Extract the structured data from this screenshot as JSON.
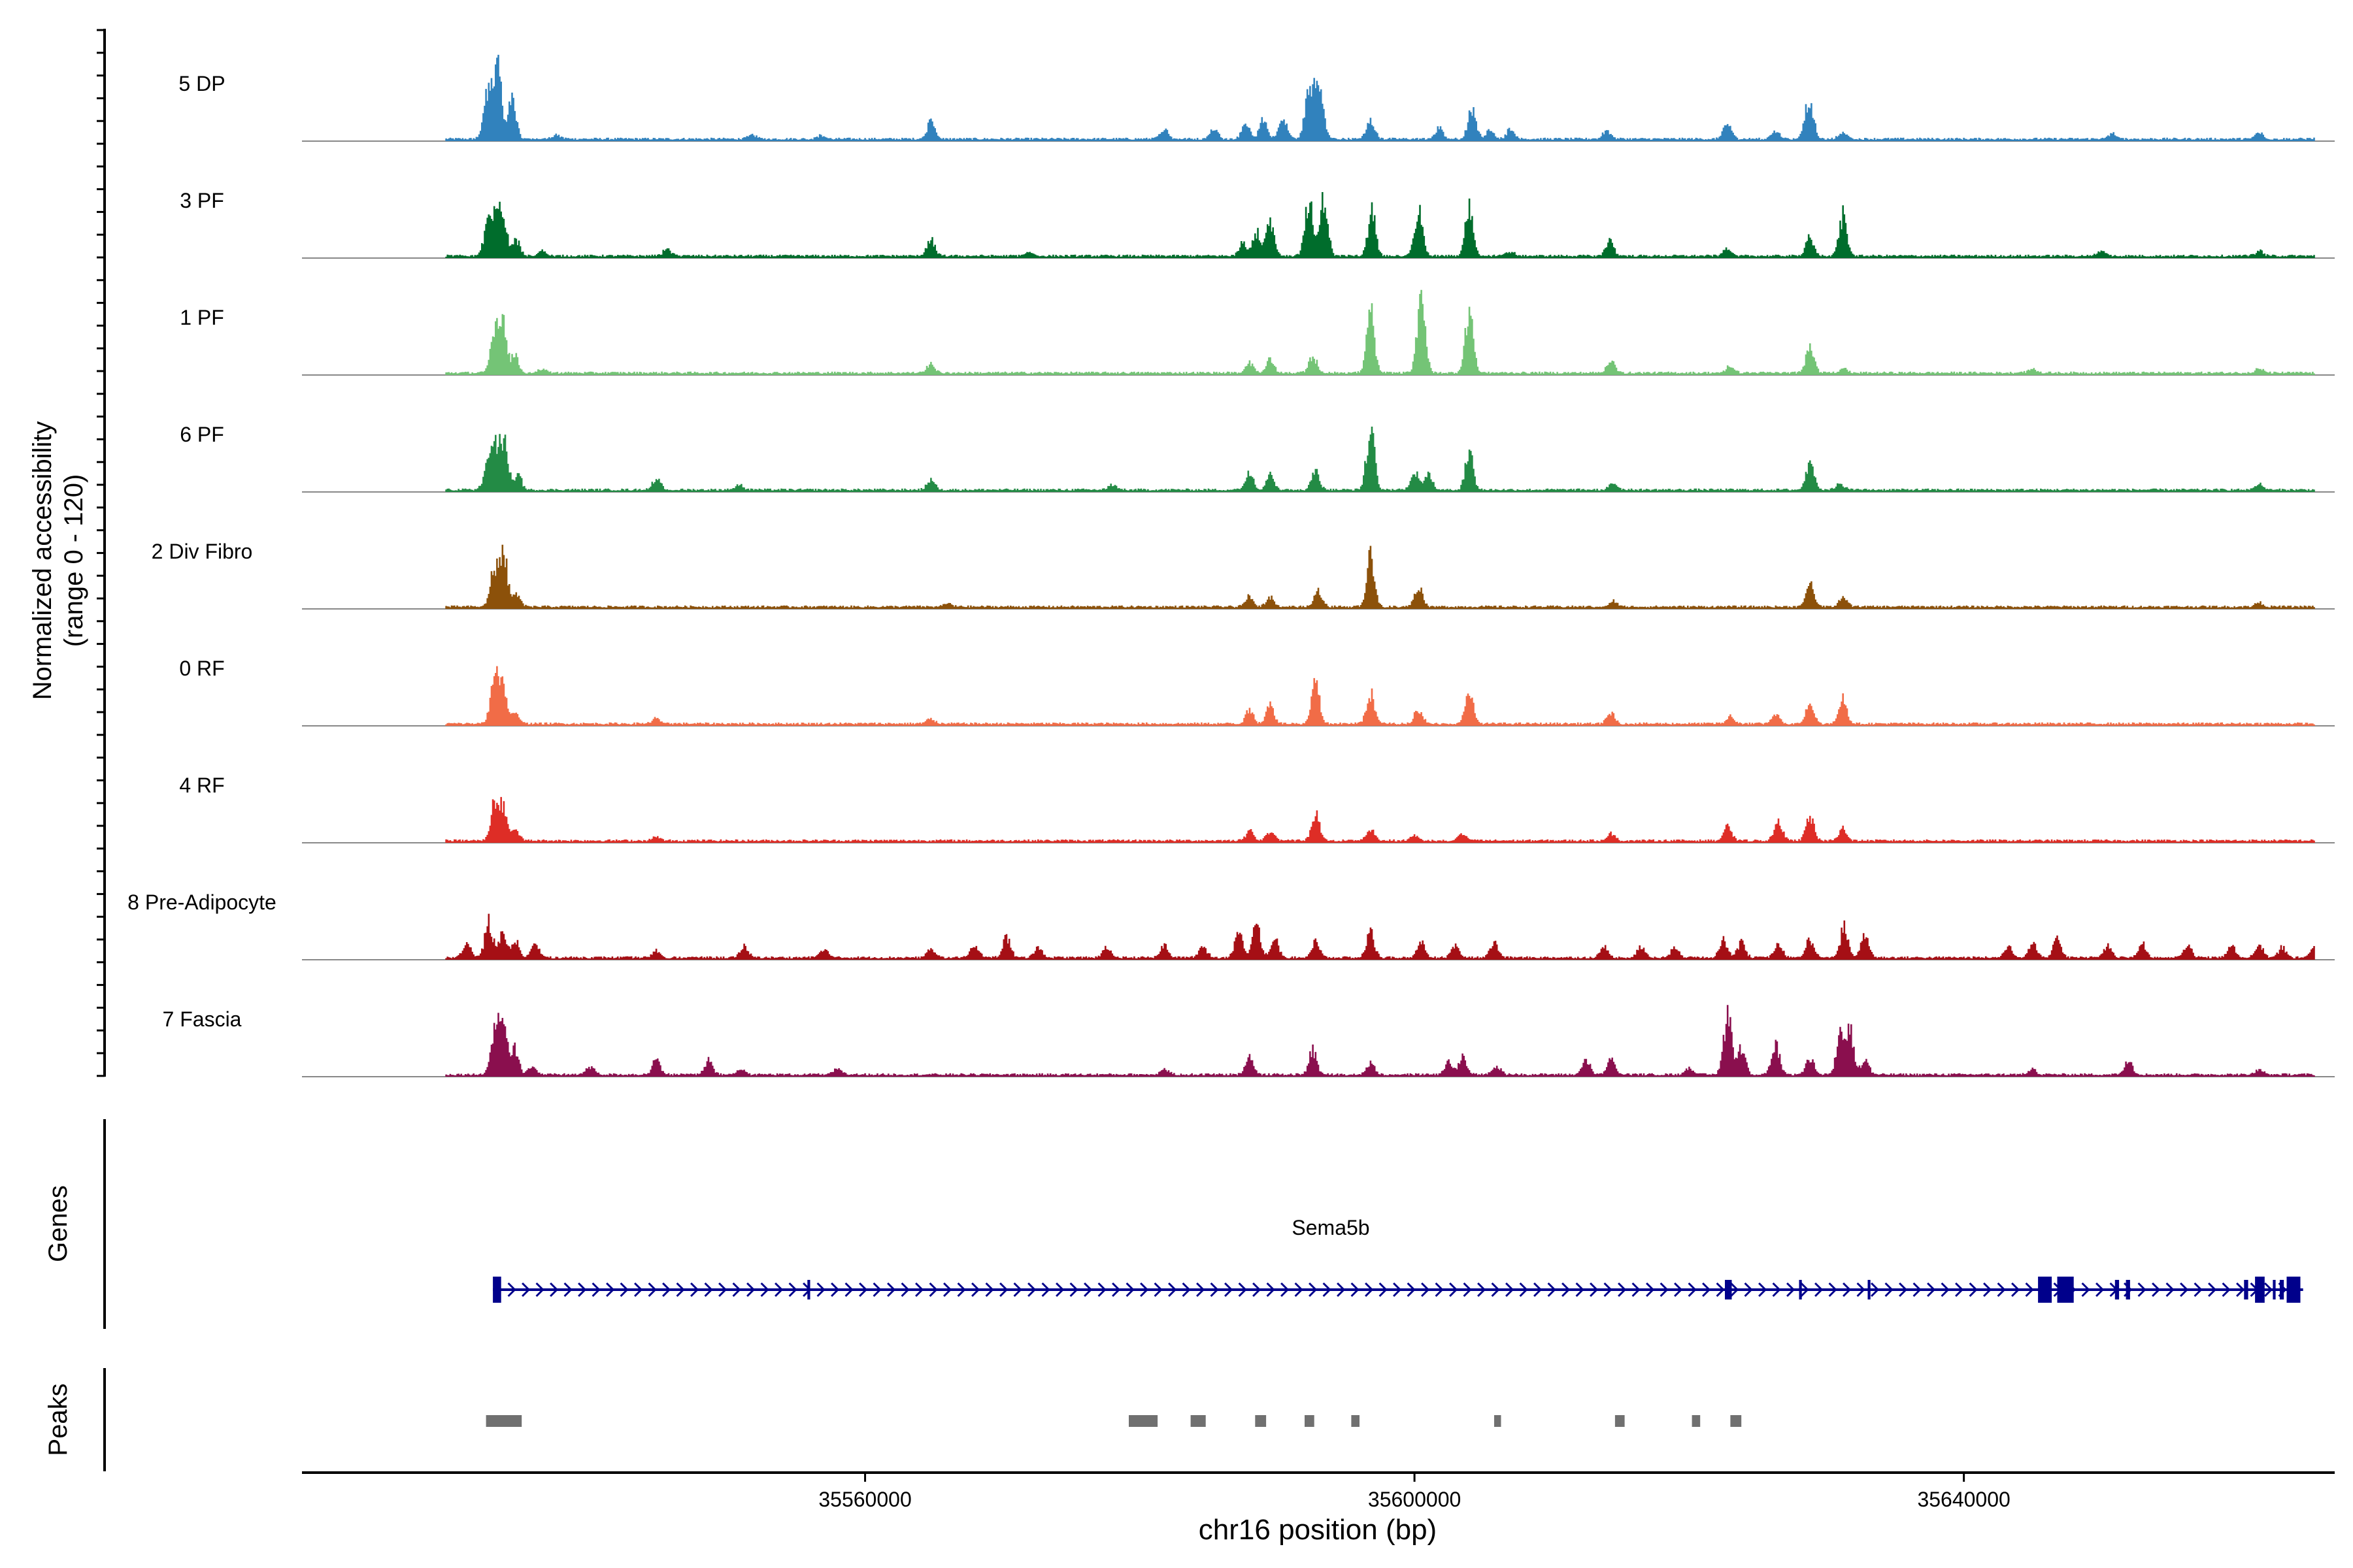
{
  "chart_data": {
    "type": "area",
    "title": "",
    "xlabel": "chr16 position (bp)",
    "coverage_ylabel_line1": "Normalized accessibility",
    "coverage_ylabel_line2": "(range 0 - 120)",
    "genes_label": "Genes",
    "peaks_label": "Peaks",
    "xlim": [
      35519000,
      35667000
    ],
    "ylim": [
      0,
      120
    ],
    "x_ticks": [
      35560000,
      35600000,
      35640000
    ],
    "x_tick_labels": [
      "35560000",
      "35600000",
      "35640000"
    ],
    "tracks": [
      {
        "name": "5 DP",
        "color": "#3182bd",
        "peaks": [
          [
            35533.2,
            0.95
          ],
          [
            35532.5,
            0.55
          ],
          [
            35534.3,
            0.45
          ],
          [
            35537.5,
            0.05
          ],
          [
            35551.8,
            0.05
          ],
          [
            35556.8,
            0.04
          ],
          [
            35564.8,
            0.2
          ],
          [
            35581.8,
            0.12
          ],
          [
            35585.4,
            0.12
          ],
          [
            35587.7,
            0.18
          ],
          [
            35589.0,
            0.22
          ],
          [
            35590.4,
            0.28
          ],
          [
            35592.8,
            0.45
          ],
          [
            35592.3,
            0.52
          ],
          [
            35593.2,
            0.38
          ],
          [
            35596.8,
            0.25
          ],
          [
            35601.8,
            0.12
          ],
          [
            35604.2,
            0.38
          ],
          [
            35605.5,
            0.1
          ],
          [
            35607.0,
            0.12
          ],
          [
            35614.0,
            0.1
          ],
          [
            35622.8,
            0.18
          ],
          [
            35626.3,
            0.1
          ],
          [
            35628.5,
            0.12
          ],
          [
            35628.8,
            0.38
          ],
          [
            35631.2,
            0.08
          ],
          [
            35650.8,
            0.06
          ],
          [
            35661.5,
            0.08
          ],
          [
            35666.0,
            0.05
          ]
        ]
      },
      {
        "name": "3 PF",
        "color": "#006d2c",
        "peaks": [
          [
            35533.1,
            0.38
          ],
          [
            35533.6,
            0.52
          ],
          [
            35532.5,
            0.35
          ],
          [
            35534.6,
            0.18
          ],
          [
            35536.5,
            0.06
          ],
          [
            35545.6,
            0.08
          ],
          [
            35564.8,
            0.18
          ],
          [
            35572.0,
            0.04
          ],
          [
            35587.5,
            0.15
          ],
          [
            35588.5,
            0.28
          ],
          [
            35589.5,
            0.38
          ],
          [
            35592.3,
            0.66
          ],
          [
            35593.4,
            0.7
          ],
          [
            35596.9,
            0.52
          ],
          [
            35600.3,
            0.55
          ],
          [
            35604.0,
            0.58
          ],
          [
            35607.0,
            0.05
          ],
          [
            35614.2,
            0.18
          ],
          [
            35622.8,
            0.1
          ],
          [
            35628.8,
            0.22
          ],
          [
            35631.2,
            0.46
          ],
          [
            35650.0,
            0.06
          ],
          [
            35661.5,
            0.06
          ]
        ]
      },
      {
        "name": "1 PF",
        "color": "#74c476",
        "peaks": [
          [
            35533.0,
            0.48
          ],
          [
            35533.6,
            0.58
          ],
          [
            35534.5,
            0.2
          ],
          [
            35536.5,
            0.05
          ],
          [
            35564.8,
            0.1
          ],
          [
            35588.0,
            0.12
          ],
          [
            35589.5,
            0.15
          ],
          [
            35592.6,
            0.2
          ],
          [
            35596.8,
            0.7
          ],
          [
            35600.5,
            0.98
          ],
          [
            35604.0,
            0.75
          ],
          [
            35614.3,
            0.14
          ],
          [
            35623.0,
            0.08
          ],
          [
            35628.8,
            0.36
          ],
          [
            35631.2,
            0.05
          ],
          [
            35645.0,
            0.05
          ],
          [
            35661.5,
            0.05
          ]
        ]
      },
      {
        "name": "6 PF",
        "color": "#238b45",
        "peaks": [
          [
            35533.0,
            0.5
          ],
          [
            35533.7,
            0.6
          ],
          [
            35532.5,
            0.25
          ],
          [
            35534.7,
            0.18
          ],
          [
            35544.8,
            0.14
          ],
          [
            35550.8,
            0.06
          ],
          [
            35564.8,
            0.12
          ],
          [
            35578.0,
            0.06
          ],
          [
            35588.0,
            0.22
          ],
          [
            35589.5,
            0.18
          ],
          [
            35592.8,
            0.22
          ],
          [
            35596.8,
            0.72
          ],
          [
            35600.0,
            0.22
          ],
          [
            35601.0,
            0.2
          ],
          [
            35604.0,
            0.45
          ],
          [
            35614.5,
            0.08
          ],
          [
            35628.8,
            0.36
          ],
          [
            35631.0,
            0.08
          ],
          [
            35661.5,
            0.07
          ]
        ]
      },
      {
        "name": "2 Div Fibro",
        "color": "#8c510a",
        "peaks": [
          [
            35533.0,
            0.45
          ],
          [
            35533.7,
            0.58
          ],
          [
            35534.6,
            0.15
          ],
          [
            35566.0,
            0.04
          ],
          [
            35588.0,
            0.12
          ],
          [
            35589.5,
            0.12
          ],
          [
            35593.0,
            0.18
          ],
          [
            35596.8,
            0.58
          ],
          [
            35600.3,
            0.25
          ],
          [
            35614.5,
            0.06
          ],
          [
            35628.8,
            0.28
          ],
          [
            35631.2,
            0.12
          ],
          [
            35661.5,
            0.05
          ]
        ]
      },
      {
        "name": "0 RF",
        "color": "#f16c47",
        "peaks": [
          [
            35533.0,
            0.52
          ],
          [
            35533.6,
            0.42
          ],
          [
            35534.5,
            0.15
          ],
          [
            35544.8,
            0.06
          ],
          [
            35564.8,
            0.06
          ],
          [
            35588.0,
            0.16
          ],
          [
            35589.5,
            0.22
          ],
          [
            35592.8,
            0.48
          ],
          [
            35596.8,
            0.36
          ],
          [
            35600.3,
            0.18
          ],
          [
            35604.0,
            0.36
          ],
          [
            35614.3,
            0.12
          ],
          [
            35623.0,
            0.08
          ],
          [
            35626.3,
            0.1
          ],
          [
            35628.8,
            0.26
          ],
          [
            35631.2,
            0.3
          ]
        ]
      },
      {
        "name": "4 RF",
        "color": "#de2d26",
        "peaks": [
          [
            35533.0,
            0.4
          ],
          [
            35533.6,
            0.38
          ],
          [
            35534.5,
            0.15
          ],
          [
            35544.8,
            0.04
          ],
          [
            35588.0,
            0.12
          ],
          [
            35589.5,
            0.1
          ],
          [
            35592.8,
            0.3
          ],
          [
            35596.8,
            0.14
          ],
          [
            35600.0,
            0.06
          ],
          [
            35603.5,
            0.08
          ],
          [
            35614.3,
            0.08
          ],
          [
            35622.8,
            0.16
          ],
          [
            35626.5,
            0.24
          ],
          [
            35628.8,
            0.28
          ],
          [
            35631.2,
            0.14
          ]
        ]
      },
      {
        "name": "8 Pre-Adipocyte",
        "color": "#a50f15",
        "peaks": [
          [
            35527.5,
            0.16
          ],
          [
            35531.0,
            0.16
          ],
          [
            35532.6,
            0.42
          ],
          [
            35533.6,
            0.28
          ],
          [
            35534.5,
            0.2
          ],
          [
            35536.0,
            0.15
          ],
          [
            35544.8,
            0.08
          ],
          [
            35551.2,
            0.14
          ],
          [
            35557.0,
            0.1
          ],
          [
            35564.8,
            0.1
          ],
          [
            35568.0,
            0.15
          ],
          [
            35570.3,
            0.24
          ],
          [
            35572.6,
            0.12
          ],
          [
            35577.6,
            0.12
          ],
          [
            35581.8,
            0.14
          ],
          [
            35584.6,
            0.14
          ],
          [
            35587.2,
            0.28
          ],
          [
            35588.5,
            0.4
          ],
          [
            35589.8,
            0.22
          ],
          [
            35592.8,
            0.18
          ],
          [
            35596.8,
            0.3
          ],
          [
            35600.5,
            0.16
          ],
          [
            35603.0,
            0.14
          ],
          [
            35605.8,
            0.18
          ],
          [
            35613.8,
            0.12
          ],
          [
            35616.5,
            0.12
          ],
          [
            35619.0,
            0.12
          ],
          [
            35622.5,
            0.22
          ],
          [
            35623.8,
            0.18
          ],
          [
            35626.5,
            0.16
          ],
          [
            35628.8,
            0.22
          ],
          [
            35631.3,
            0.36
          ],
          [
            35632.8,
            0.28
          ],
          [
            35643.2,
            0.14
          ],
          [
            35645.0,
            0.16
          ],
          [
            35646.8,
            0.22
          ],
          [
            35650.5,
            0.14
          ],
          [
            35653.0,
            0.16
          ],
          [
            35656.3,
            0.14
          ],
          [
            35659.5,
            0.14
          ],
          [
            35661.5,
            0.16
          ],
          [
            35663.2,
            0.12
          ],
          [
            35665.5,
            0.12
          ]
        ]
      },
      {
        "name": "7 Fascia",
        "color": "#8a0f4e",
        "peaks": [
          [
            35533.0,
            0.48
          ],
          [
            35533.6,
            0.72
          ],
          [
            35534.5,
            0.3
          ],
          [
            35535.8,
            0.1
          ],
          [
            35540.0,
            0.1
          ],
          [
            35544.8,
            0.18
          ],
          [
            35548.6,
            0.16
          ],
          [
            35551.0,
            0.06
          ],
          [
            35558.0,
            0.06
          ],
          [
            35581.8,
            0.06
          ],
          [
            35588.0,
            0.22
          ],
          [
            35592.6,
            0.28
          ],
          [
            35596.8,
            0.14
          ],
          [
            35602.5,
            0.14
          ],
          [
            35603.5,
            0.2
          ],
          [
            35606.0,
            0.1
          ],
          [
            35612.5,
            0.16
          ],
          [
            35614.3,
            0.18
          ],
          [
            35620.0,
            0.08
          ],
          [
            35622.8,
            0.72
          ],
          [
            35623.8,
            0.34
          ],
          [
            35626.3,
            0.34
          ],
          [
            35628.8,
            0.2
          ],
          [
            35631.0,
            0.45
          ],
          [
            35631.7,
            0.52
          ],
          [
            35632.8,
            0.18
          ],
          [
            35645.0,
            0.06
          ],
          [
            35652.0,
            0.18
          ],
          [
            35661.5,
            0.06
          ]
        ]
      }
    ],
    "gene": {
      "name": "Sema5b",
      "color": "#00008b",
      "strand": "+",
      "start": 35532900,
      "end": 35664700,
      "exons": [
        [
          35532900,
          35533500
        ],
        [
          35555800,
          35556000
        ],
        [
          35622600,
          35623100
        ],
        [
          35628000,
          35628200
        ],
        [
          35633000,
          35633200
        ],
        [
          35645400,
          35646400
        ],
        [
          35646800,
          35648000
        ],
        [
          35651000,
          35651300
        ],
        [
          35651800,
          35652100
        ],
        [
          35660400,
          35660700
        ],
        [
          35661200,
          35661900
        ],
        [
          35662500,
          35662700
        ],
        [
          35663000,
          35663300
        ],
        [
          35663500,
          35664500
        ]
      ]
    },
    "peaks": [
      [
        35532400,
        35535000
      ],
      [
        35579200,
        35581300
      ],
      [
        35583700,
        35584800
      ],
      [
        35588400,
        35589200
      ],
      [
        35592000,
        35592700
      ],
      [
        35595400,
        35596000
      ],
      [
        35605800,
        35606300
      ],
      [
        35614600,
        35615300
      ],
      [
        35620200,
        35620800
      ],
      [
        35623000,
        35623800
      ]
    ]
  }
}
